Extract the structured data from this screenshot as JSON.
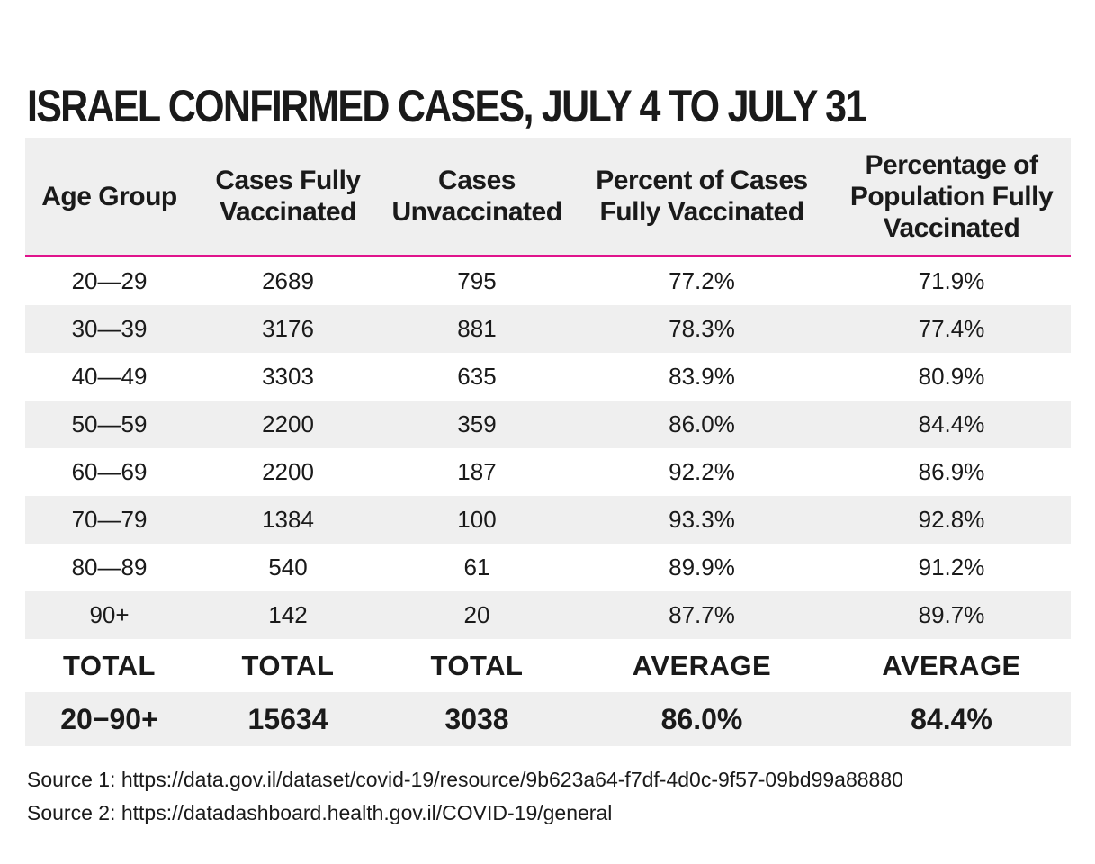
{
  "chart_data": {
    "type": "table",
    "title": "ISRAEL CONFIRMED CASES, JULY 4 TO JULY 31",
    "columns": [
      "Age Group",
      "Cases Fully Vaccinated",
      "Cases Unvaccinated",
      "Percent of Cases Fully Vaccinated",
      "Percentage of Population Fully Vaccinated"
    ],
    "rows": [
      [
        "20—29",
        "2689",
        "795",
        "77.2%",
        "71.9%"
      ],
      [
        "30—39",
        "3176",
        "881",
        "78.3%",
        "77.4%"
      ],
      [
        "40—49",
        "3303",
        "635",
        "83.9%",
        "80.9%"
      ],
      [
        "50—59",
        "2200",
        "359",
        "86.0%",
        "84.4%"
      ],
      [
        "60—69",
        "2200",
        "187",
        "92.2%",
        "86.9%"
      ],
      [
        "70—79",
        "1384",
        "100",
        "93.3%",
        "92.8%"
      ],
      [
        "80—89",
        "540",
        "61",
        "89.9%",
        "91.2%"
      ],
      [
        "90+",
        "142",
        "20",
        "87.7%",
        "89.7%"
      ]
    ],
    "summary_labels": [
      "TOTAL",
      "TOTAL",
      "TOTAL",
      "AVERAGE",
      "AVERAGE"
    ],
    "summary_values": [
      "20−90+",
      "15634",
      "3038",
      "86.0%",
      "84.4%"
    ]
  },
  "header": {
    "col0": [
      "Age Group"
    ],
    "col1": [
      "Cases Fully",
      "Vaccinated"
    ],
    "col2": [
      "Cases",
      "Unvaccinated"
    ],
    "col3": [
      "Percent of Cases",
      "Fully Vaccinated"
    ],
    "col4": [
      "Percentage of",
      "Population Fully",
      "Vaccinated"
    ]
  },
  "sources": [
    "Source 1: https://data.gov.il/dataset/covid-19/resource/9b623a64-f7df-4d0c-9f57-09bd99a88880",
    "Source 2: https://datadashboard.health.gov.il/COVID-19/general"
  ],
  "colors": {
    "accent": "#e0138c",
    "shade": "#efefef",
    "text": "#1a1a1a"
  }
}
